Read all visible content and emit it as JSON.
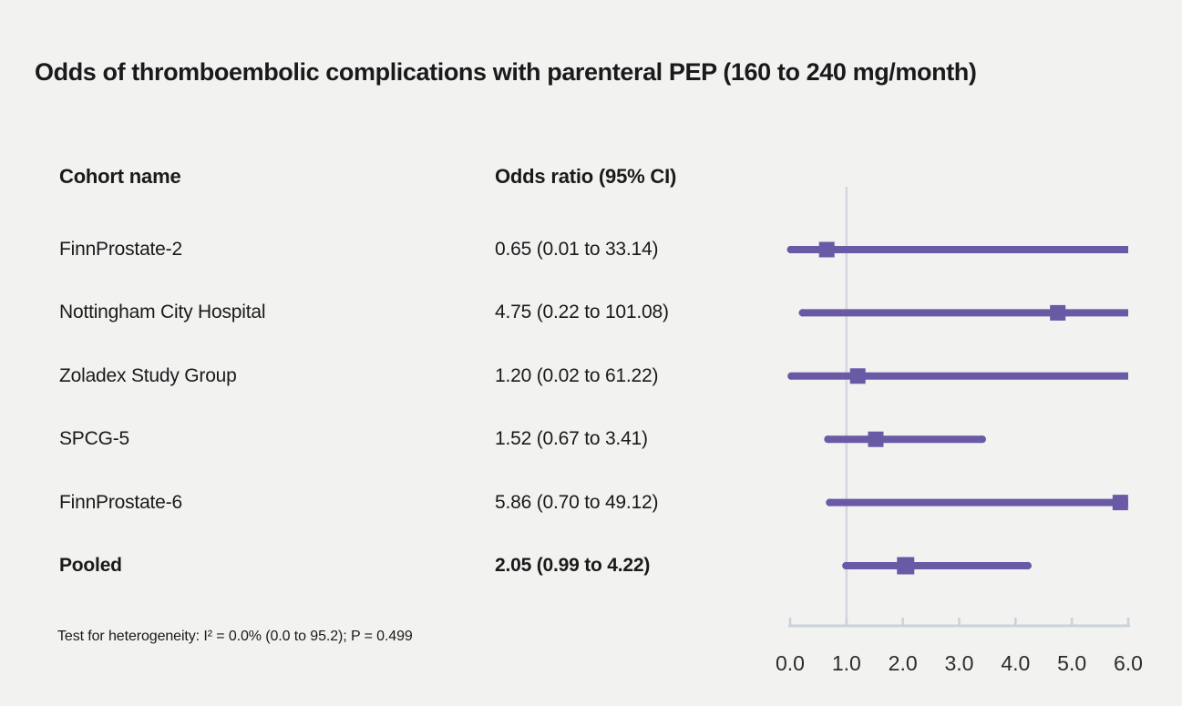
{
  "chart_data": {
    "type": "forest",
    "title": "Odds of thromboembolic complications with parenteral PEP (160 to 240 mg/month)",
    "columns": [
      "Cohort name",
      "Odds ratio (95% CI)"
    ],
    "rows": [
      {
        "label": "FinnProstate-2",
        "or_text": "0.65 (0.01 to 33.14)",
        "or": 0.65,
        "lo": 0.01,
        "hi": 33.14,
        "bold": false
      },
      {
        "label": "Nottingham City Hospital",
        "or_text": "4.75 (0.22 to 101.08)",
        "or": 4.75,
        "lo": 0.22,
        "hi": 101.08,
        "bold": false
      },
      {
        "label": "Zoladex Study Group",
        "or_text": "1.20 (0.02 to 61.22)",
        "or": 1.2,
        "lo": 0.02,
        "hi": 61.22,
        "bold": false
      },
      {
        "label": "SPCG-5",
        "or_text": "1.52 (0.67 to 3.41)",
        "or": 1.52,
        "lo": 0.67,
        "hi": 3.41,
        "bold": false
      },
      {
        "label": "FinnProstate-6",
        "or_text": "5.86 (0.70 to 49.12)",
        "or": 5.86,
        "lo": 0.7,
        "hi": 49.12,
        "bold": false
      },
      {
        "label": "Pooled",
        "or_text": "2.05 (0.99 to 4.22)",
        "or": 2.05,
        "lo": 0.99,
        "hi": 4.22,
        "bold": true
      }
    ],
    "axis": {
      "min": 0,
      "max": 6,
      "reference": 1.0,
      "tick_labels": [
        "0.0",
        "1.0",
        "2.0",
        "3.0",
        "4.0",
        "5.0",
        "6.0"
      ],
      "tick_values": [
        0,
        1,
        2,
        3,
        4,
        5,
        6
      ]
    },
    "footnote": "Test for heterogeneity: I² = 0.0% (0.0 to 95.2); P = 0.499",
    "colors": {
      "marker": "#6a5aa5",
      "ci_line": "#6a5aa5",
      "reference_line": "#d4d8e0",
      "axis_line": "#ccd2db",
      "background": "#f2f2f1",
      "text": "#1a1a1a"
    }
  }
}
